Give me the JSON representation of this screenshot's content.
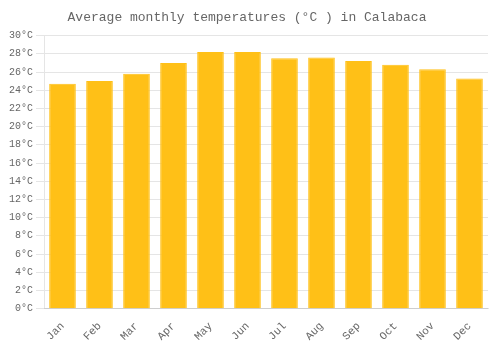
{
  "chart_data": {
    "type": "bar",
    "title": "Average monthly temperatures (°C ) in Calabaca",
    "categories": [
      "Jan",
      "Feb",
      "Mar",
      "Apr",
      "May",
      "Jun",
      "Jul",
      "Aug",
      "Sep",
      "Oct",
      "Nov",
      "Dec"
    ],
    "values": [
      24.7,
      25.0,
      25.8,
      27.0,
      28.2,
      28.2,
      27.5,
      27.6,
      27.2,
      26.8,
      26.3,
      25.3
    ],
    "color": "#FFC017",
    "ylim": [
      0,
      30
    ],
    "yticks": [
      {
        "value": 0,
        "label": "0°C"
      },
      {
        "value": 2,
        "label": "2°C"
      },
      {
        "value": 4,
        "label": "4°C"
      },
      {
        "value": 6,
        "label": "6°C"
      },
      {
        "value": 8,
        "label": "8°C"
      },
      {
        "value": 10,
        "label": "10°C"
      },
      {
        "value": 12,
        "label": "12°C"
      },
      {
        "value": 14,
        "label": "14°C"
      },
      {
        "value": 16,
        "label": "16°C"
      },
      {
        "value": 18,
        "label": "18°C"
      },
      {
        "value": 20,
        "label": "20°C"
      },
      {
        "value": 22,
        "label": "22°C"
      },
      {
        "value": 24,
        "label": "24°C"
      },
      {
        "value": 26,
        "label": "26°C"
      },
      {
        "value": 28,
        "label": "28°C"
      },
      {
        "value": 30,
        "label": "30°C"
      }
    ],
    "grid": true
  }
}
